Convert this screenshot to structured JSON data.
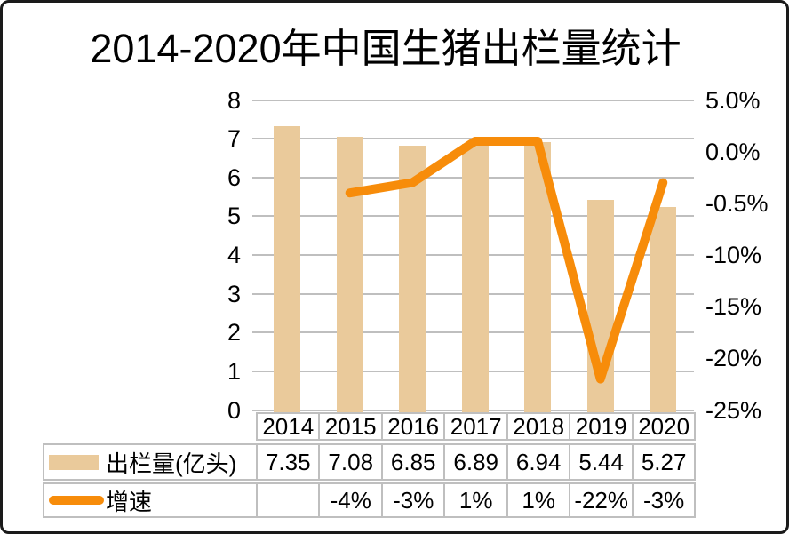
{
  "title": "2014-2020年中国生猪出栏量统计",
  "colors": {
    "bar": "#EACA9B",
    "line": "#F78C0A",
    "grid": "#BFBFBF",
    "table_border": "#BFBFBF",
    "text": "#000000",
    "figure_border": "#1A1A1A"
  },
  "chart_data": {
    "type": "combo-bar-line",
    "categories": [
      "2014",
      "2015",
      "2016",
      "2017",
      "2018",
      "2019",
      "2020"
    ],
    "series": [
      {
        "name": "出栏量(亿头)",
        "type": "bar",
        "axis": "left",
        "values": [
          7.35,
          7.08,
          6.85,
          6.89,
          6.94,
          5.44,
          5.27
        ]
      },
      {
        "name": "增速",
        "type": "line",
        "axis": "right",
        "values": [
          null,
          -4,
          -3,
          1,
          1,
          -22,
          -3
        ],
        "display": [
          "",
          "-4%",
          "-3%",
          "1%",
          "1%",
          "-22%",
          "-3%"
        ]
      }
    ],
    "left_axis": {
      "min": 0,
      "max": 8,
      "tick_labels": [
        "8",
        "7",
        "6",
        "5",
        "4",
        "3",
        "2",
        "1",
        "0"
      ]
    },
    "right_axis": {
      "min": -25,
      "max": 5,
      "tick_labels": [
        "5.0%",
        "0.0%",
        "-0.5%",
        "-10%",
        "-15%",
        "-20%",
        "-25%"
      ]
    },
    "grid": true,
    "legend_position": "data-table-left"
  },
  "table": {
    "header_years": [
      "2014",
      "2015",
      "2016",
      "2017",
      "2018",
      "2019",
      "2020"
    ],
    "rows": [
      {
        "legend": "出栏量(亿头)",
        "swatch": "bar",
        "cells": [
          "7.35",
          "7.08",
          "6.85",
          "6.89",
          "6.94",
          "5.44",
          "5.27"
        ]
      },
      {
        "legend": "增速",
        "swatch": "line",
        "cells": [
          "",
          "-4%",
          "-3%",
          "1%",
          "1%",
          "-22%",
          "-3%"
        ]
      }
    ]
  }
}
